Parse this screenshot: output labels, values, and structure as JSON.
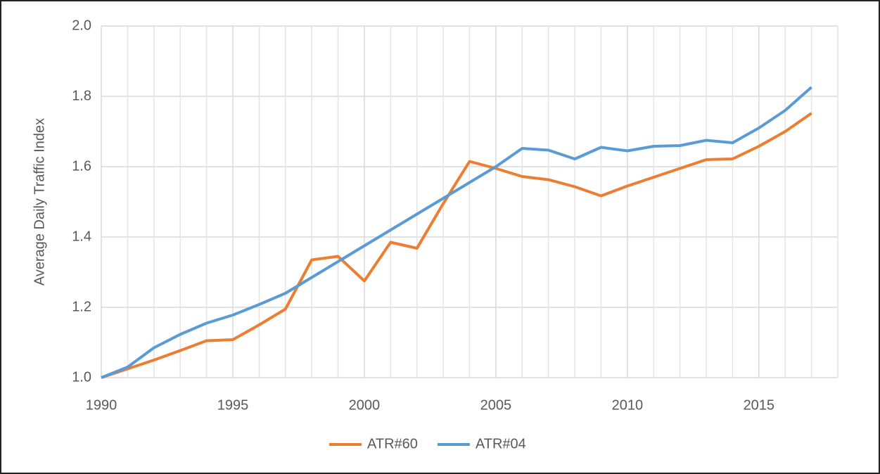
{
  "chart_data": {
    "type": "line",
    "y_label": "Average Daily Traffic Index",
    "x": [
      1990,
      1991,
      1992,
      1993,
      1994,
      1995,
      1996,
      1997,
      1998,
      1999,
      2000,
      2001,
      2002,
      2003,
      2004,
      2005,
      2006,
      2007,
      2008,
      2009,
      2010,
      2011,
      2012,
      2013,
      2014,
      2015,
      2016,
      2017
    ],
    "series": [
      {
        "name": "ATR#60",
        "color": "#ed7d31",
        "values": [
          1.0,
          1.025,
          1.05,
          1.077,
          1.105,
          1.108,
          1.15,
          1.195,
          1.335,
          1.345,
          1.275,
          1.385,
          1.368,
          1.495,
          1.615,
          1.595,
          1.572,
          1.563,
          1.543,
          1.517,
          1.545,
          1.57,
          1.595,
          1.62,
          1.622,
          1.658,
          1.7,
          1.752
        ]
      },
      {
        "name": "ATR#04",
        "color": "#5b9bd5",
        "values": [
          1.0,
          1.03,
          1.085,
          1.123,
          1.155,
          1.178,
          1.208,
          1.24,
          1.285,
          1.33,
          1.375,
          1.42,
          1.465,
          1.51,
          1.555,
          1.6,
          1.652,
          1.647,
          1.622,
          1.655,
          1.645,
          1.658,
          1.66,
          1.675,
          1.668,
          1.71,
          1.76,
          1.826
        ]
      }
    ],
    "xlim": [
      1990,
      2018
    ],
    "xticks": [
      1990,
      1995,
      2000,
      2005,
      2010,
      2015
    ],
    "x_minor_ticks": [
      1991,
      1992,
      1993,
      1994,
      1996,
      1997,
      1998,
      1999,
      2001,
      2002,
      2003,
      2004,
      2006,
      2007,
      2008,
      2009,
      2011,
      2012,
      2013,
      2014,
      2016,
      2017,
      2018
    ],
    "ylim": [
      1.0,
      2.0
    ],
    "yticks": [
      {
        "value": 1.0,
        "label": "1.0"
      },
      1.2,
      1.4,
      1.6,
      1.8,
      {
        "value": 2.0,
        "label": "2.0"
      }
    ],
    "grid": true,
    "legend": "bottom"
  }
}
